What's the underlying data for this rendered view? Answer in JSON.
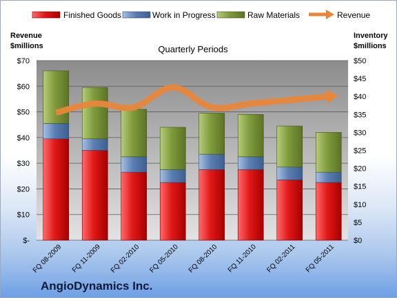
{
  "company": "AngioDynamics Inc.",
  "chart_data": {
    "type": "bar",
    "stacked": true,
    "title": "Quarterly Periods",
    "ylabel_left": "Revenue $millions",
    "ylabel_right": "Inventory $millions",
    "categories": [
      "FQ 08-2009",
      "FQ 11-2009",
      "FQ 02-2010",
      "FQ 05-2010",
      "FQ 08-2010",
      "FQ 11-2010",
      "FQ 02-2011",
      "FQ 05-2011"
    ],
    "left_axis": {
      "min": 0,
      "max": 70,
      "step": 10,
      "ticks": [
        "$-",
        "$10",
        "$20",
        "$30",
        "$40",
        "$50",
        "$60",
        "$70"
      ]
    },
    "right_axis": {
      "min": 0,
      "max": 50,
      "step": 5,
      "ticks": [
        "$0",
        "$5",
        "$10",
        "$15",
        "$20",
        "$25",
        "$30",
        "$35",
        "$40",
        "$45",
        "$50"
      ]
    },
    "series": [
      {
        "name": "Finished Goods",
        "axis": "left",
        "color": "#c00000",
        "values": [
          39.5,
          35.0,
          26.5,
          22.5,
          27.5,
          27.5,
          23.5,
          22.5
        ]
      },
      {
        "name": "Work in Progress",
        "axis": "left",
        "color": "#4f81bd",
        "values": [
          6.0,
          4.5,
          6.0,
          5.0,
          6.0,
          5.0,
          5.0,
          4.0
        ]
      },
      {
        "name": "Raw Materials",
        "axis": "left",
        "color": "#76923c",
        "values": [
          20.5,
          20.0,
          18.5,
          16.5,
          16.0,
          16.5,
          16.0,
          15.5
        ]
      },
      {
        "name": "Revenue",
        "axis": "right",
        "type": "line",
        "color": "#e8873a",
        "values": [
          35.5,
          38.0,
          37.0,
          42.5,
          37.0,
          38.0,
          39.0,
          40.0
        ]
      }
    ],
    "legend_position": "top",
    "grid": true
  }
}
